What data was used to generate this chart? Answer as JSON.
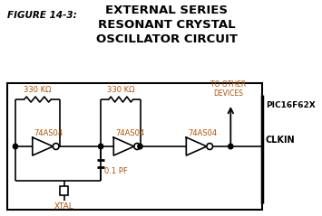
{
  "fig_label": "FIGURE 14-3:",
  "title_line1": "EXTERNAL SERIES",
  "title_line2": "RESONANT CRYSTAL",
  "title_line3": "OSCILLATOR CIRCUIT",
  "label_74AS04_1": "74AS04",
  "label_74AS04_2": "74AS04",
  "label_74AS04_3": "74AS04",
  "label_res1": "330 KΩ",
  "label_res2": "330 KΩ",
  "label_cap": "0.1 PF",
  "label_xtal": "XTAL",
  "label_to_other": "TO OTHER\nDEVICES",
  "label_pic": "PIC16F62X",
  "label_clkin": "CLKIN",
  "bg_color": "#ffffff",
  "line_color": "#000000",
  "text_orange": "#b05000",
  "text_black": "#000000",
  "text_blue": "#000080"
}
